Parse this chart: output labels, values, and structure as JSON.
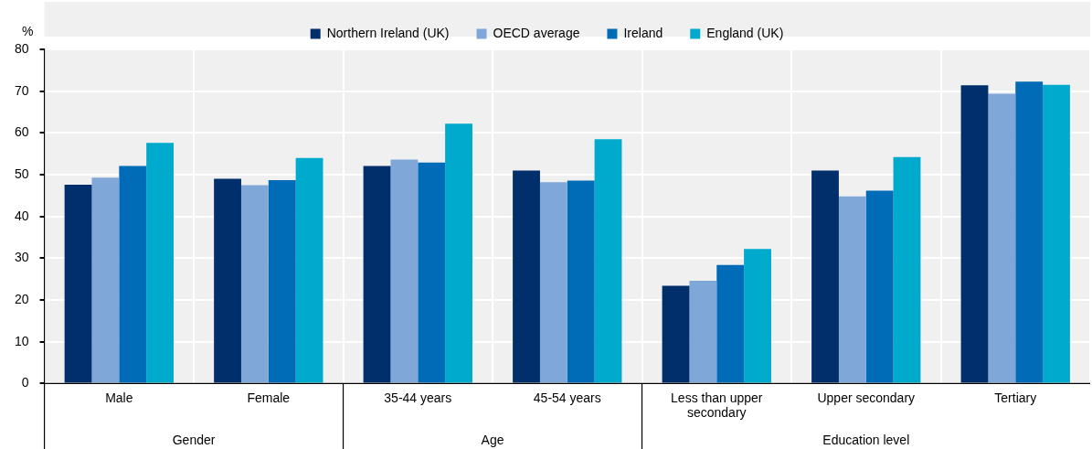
{
  "chart_data": {
    "type": "bar",
    "ylabel": "%",
    "categories": [
      "Male",
      "Female",
      "35-44 years",
      "45-54 years",
      "Less than upper secondary",
      "Upper secondary",
      "Tertiary"
    ],
    "series": [
      {
        "name": "Northern Ireland (UK)",
        "color": "#002f6c",
        "values": [
          47.6,
          49.0,
          52.1,
          51.0,
          23.4,
          51.0,
          71.4
        ]
      },
      {
        "name": "OECD average",
        "color": "#7fa8d9",
        "values": [
          49.3,
          47.5,
          53.6,
          48.2,
          24.6,
          44.8,
          69.4
        ]
      },
      {
        "name": "Ireland",
        "color": "#006bb6",
        "values": [
          52.1,
          48.7,
          52.9,
          48.6,
          28.4,
          46.2,
          72.3
        ]
      },
      {
        "name": "England (UK)",
        "color": "#00aacc",
        "values": [
          57.6,
          54.0,
          62.2,
          58.5,
          32.2,
          54.2,
          71.5
        ]
      }
    ],
    "ylim": [
      0,
      80
    ],
    "yticks": [
      0,
      10,
      20,
      30,
      40,
      50,
      60,
      70,
      80
    ],
    "grid": true,
    "legend": "top",
    "annotations": [
      "Gender",
      "Age",
      "Education level"
    ]
  }
}
